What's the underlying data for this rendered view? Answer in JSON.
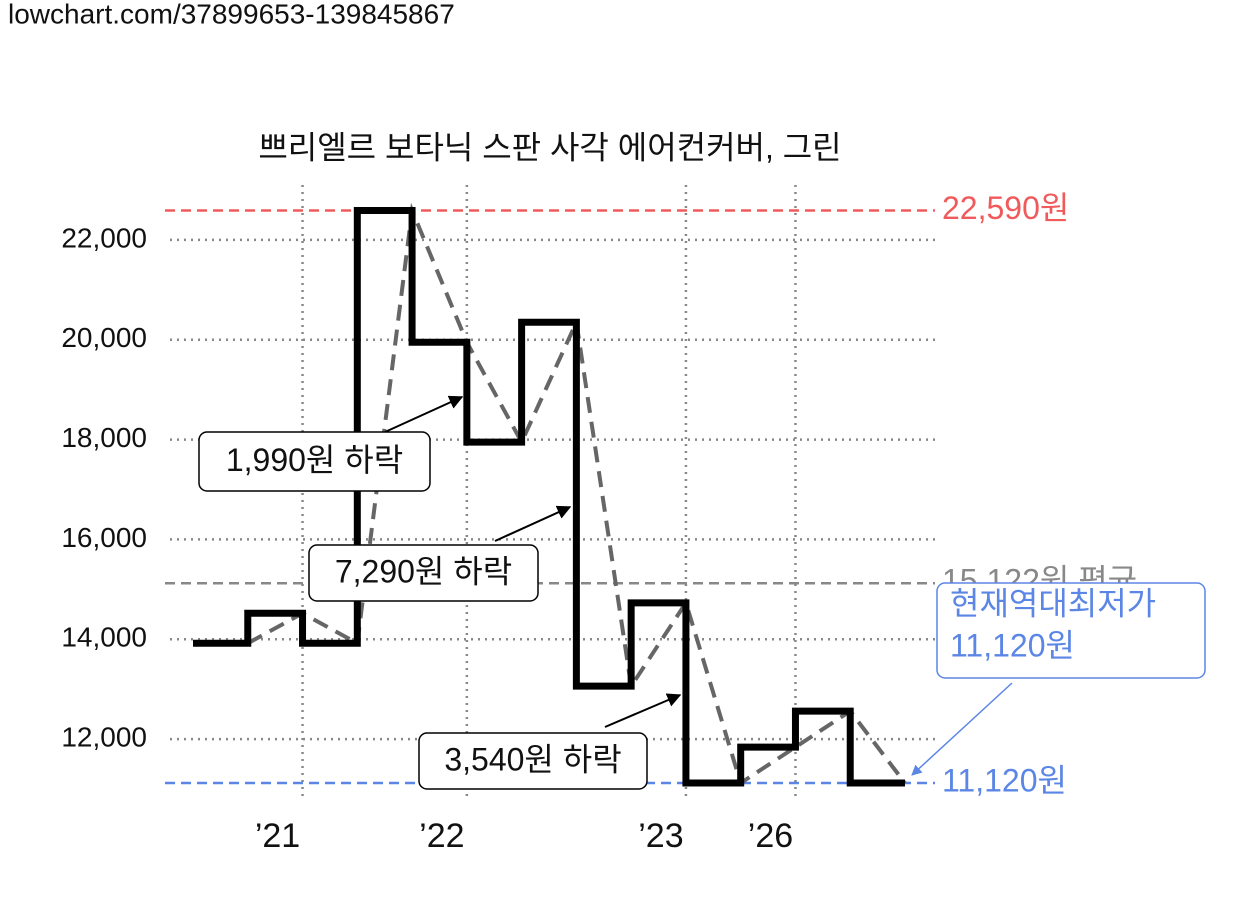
{
  "header": {
    "url": "lowchart.com/37899653-139845867"
  },
  "chart_data": {
    "type": "step",
    "title": "쁘리엘르 보타닉 스판 사각 에어컨커버, 그린",
    "categories": [
      null,
      null,
      "’21",
      null,
      null,
      "’22",
      null,
      null,
      null,
      "’23",
      null,
      "’26",
      null
    ],
    "series": [
      {
        "color": "#000000",
        "values": [
          13920,
          14520,
          13920,
          22590,
          19950,
          17950,
          20350,
          13060,
          14730,
          11120,
          11840,
          12560,
          11120
        ]
      }
    ],
    "ylim": [
      10780,
      23000
    ],
    "yticks": [
      {
        "value": 12000,
        "label": "12,000"
      },
      {
        "value": 14000,
        "label": "14,000"
      },
      {
        "value": 16000,
        "label": "16,000"
      },
      {
        "value": 18000,
        "label": "18,000"
      },
      {
        "value": 20000,
        "label": "20,000"
      },
      {
        "value": 22000,
        "label": "22,000"
      }
    ],
    "grid": true,
    "reference_lines": [
      {
        "value": 22590,
        "label": "22,590원",
        "color": "#f05a5a"
      },
      {
        "value": 15122,
        "label": "15,122원 평균",
        "color": "#888888"
      },
      {
        "value": 11120,
        "label": "11,120원",
        "color": "#5b86e5"
      }
    ],
    "annotations": [
      "1,990원 하락",
      "7,290원 하락",
      "3,540원 하락"
    ],
    "current_low": {
      "title": "현재역대최저가",
      "price": "11,120원",
      "color": "#5b86e5"
    }
  }
}
